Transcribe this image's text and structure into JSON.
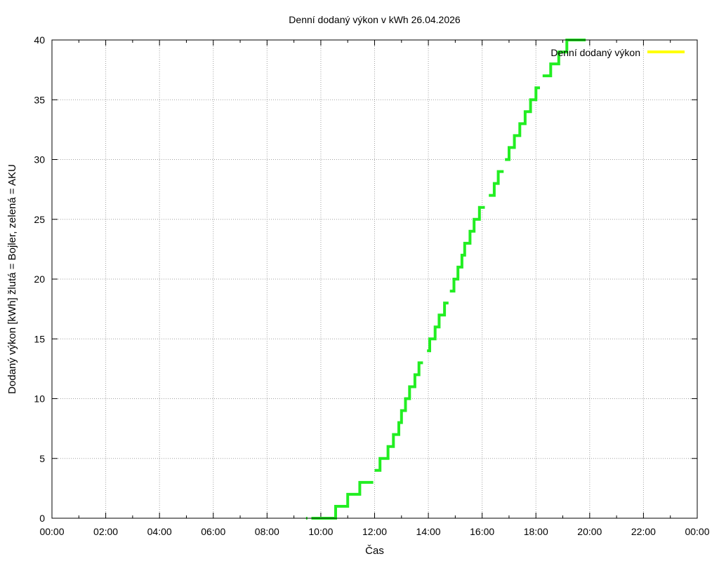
{
  "chart_data": {
    "type": "line",
    "title": "Denní dodaný výkon v kWh 26.04.2026",
    "xlabel": "Čas",
    "ylabel": "Dodaný výkon [kWh]  žlutá = Bojler, zelená = AKU",
    "xlim": [
      0,
      24
    ],
    "ylim": [
      0,
      40
    ],
    "grid": true,
    "legend_position": "top-right",
    "x_tick_labels": [
      "00:00",
      "02:00",
      "04:00",
      "06:00",
      "08:00",
      "10:00",
      "12:00",
      "14:00",
      "16:00",
      "18:00",
      "20:00",
      "22:00",
      "00:00"
    ],
    "y_tick_labels": [
      "0",
      "5",
      "10",
      "15",
      "20",
      "25",
      "30",
      "35",
      "40"
    ],
    "series": [
      {
        "name": "Denní dodaný výkon",
        "color": "#ffff00",
        "style": "step",
        "segments": []
      },
      {
        "color": "#22ee22",
        "style": "step",
        "segments": [
          [
            [
              9.45,
              0
            ],
            [
              9.5,
              0
            ]
          ],
          [
            [
              9.65,
              0
            ],
            [
              10.55,
              0
            ],
            [
              10.55,
              1
            ],
            [
              11.0,
              1
            ],
            [
              11.0,
              2
            ],
            [
              11.45,
              2
            ],
            [
              11.45,
              3
            ],
            [
              11.95,
              3
            ]
          ],
          [
            [
              12.0,
              4
            ],
            [
              12.2,
              4
            ],
            [
              12.2,
              5
            ],
            [
              12.5,
              5
            ],
            [
              12.5,
              6
            ],
            [
              12.7,
              6
            ],
            [
              12.7,
              7
            ],
            [
              12.9,
              7
            ],
            [
              12.9,
              8
            ],
            [
              13.0,
              8
            ],
            [
              13.0,
              9
            ],
            [
              13.15,
              9
            ],
            [
              13.15,
              10
            ],
            [
              13.3,
              10
            ],
            [
              13.3,
              11
            ],
            [
              13.5,
              11
            ],
            [
              13.5,
              12
            ],
            [
              13.65,
              12
            ],
            [
              13.65,
              13
            ],
            [
              13.8,
              13
            ]
          ],
          [
            [
              13.95,
              14
            ],
            [
              14.05,
              14
            ],
            [
              14.05,
              15
            ],
            [
              14.25,
              15
            ],
            [
              14.25,
              16
            ],
            [
              14.4,
              16
            ],
            [
              14.4,
              17
            ],
            [
              14.6,
              17
            ],
            [
              14.6,
              18
            ],
            [
              14.75,
              18
            ]
          ],
          [
            [
              14.8,
              19
            ],
            [
              14.95,
              19
            ],
            [
              14.95,
              20
            ],
            [
              15.1,
              20
            ],
            [
              15.1,
              21
            ],
            [
              15.25,
              21
            ],
            [
              15.25,
              22
            ],
            [
              15.35,
              22
            ],
            [
              15.35,
              23
            ],
            [
              15.55,
              23
            ],
            [
              15.55,
              24
            ],
            [
              15.7,
              24
            ],
            [
              15.7,
              25
            ],
            [
              15.9,
              25
            ],
            [
              15.9,
              26
            ],
            [
              16.1,
              26
            ]
          ],
          [
            [
              16.25,
              27
            ],
            [
              16.45,
              27
            ],
            [
              16.45,
              28
            ],
            [
              16.6,
              28
            ],
            [
              16.6,
              29
            ],
            [
              16.8,
              29
            ]
          ],
          [
            [
              16.85,
              30
            ],
            [
              17.0,
              30
            ],
            [
              17.0,
              31
            ],
            [
              17.2,
              31
            ],
            [
              17.2,
              32
            ],
            [
              17.4,
              32
            ],
            [
              17.4,
              33
            ],
            [
              17.6,
              33
            ],
            [
              17.6,
              34
            ],
            [
              17.8,
              34
            ],
            [
              17.8,
              35
            ],
            [
              18.0,
              35
            ],
            [
              18.0,
              36
            ],
            [
              18.15,
              36
            ]
          ],
          [
            [
              18.25,
              37
            ],
            [
              18.55,
              37
            ],
            [
              18.55,
              38
            ],
            [
              18.85,
              38
            ],
            [
              18.85,
              39
            ],
            [
              19.15,
              39
            ],
            [
              19.15,
              40
            ],
            [
              19.85,
              40
            ]
          ]
        ]
      }
    ]
  }
}
